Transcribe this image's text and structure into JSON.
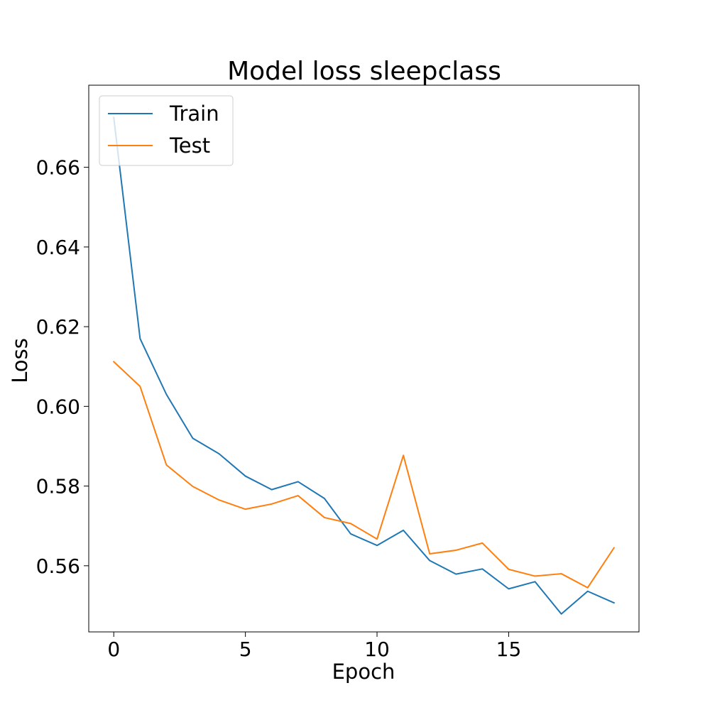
{
  "chart_data": {
    "type": "line",
    "title": "Model loss sleepclass",
    "xlabel": "Epoch",
    "ylabel": "Loss",
    "x": [
      0,
      1,
      2,
      3,
      4,
      5,
      6,
      7,
      8,
      9,
      10,
      11,
      12,
      13,
      14,
      15,
      16,
      17,
      18,
      19
    ],
    "xlim": [
      -0.95,
      19.95
    ],
    "ylim": [
      0.5434,
      0.6806
    ],
    "xticks": [
      0,
      5,
      10,
      15
    ],
    "yticks": [
      0.56,
      0.58,
      0.6,
      0.62,
      0.64,
      0.66
    ],
    "ytick_labels": [
      "0.56",
      "0.58",
      "0.60",
      "0.62",
      "0.64",
      "0.66"
    ],
    "xtick_labels": [
      "0",
      "5",
      "10",
      "15"
    ],
    "grid": false,
    "legend_position": "top-left",
    "series": [
      {
        "name": "Train",
        "color": "#1f77b4",
        "values": [
          0.6725,
          0.617,
          0.603,
          0.592,
          0.5881,
          0.5825,
          0.5791,
          0.5811,
          0.5769,
          0.568,
          0.5651,
          0.5689,
          0.5613,
          0.5579,
          0.5592,
          0.5542,
          0.556,
          0.5479,
          0.5536,
          0.5507
        ]
      },
      {
        "name": "Test",
        "color": "#ff7f0e",
        "values": [
          0.6112,
          0.605,
          0.5853,
          0.5799,
          0.5765,
          0.5742,
          0.5755,
          0.5776,
          0.5721,
          0.5706,
          0.5667,
          0.5877,
          0.563,
          0.5639,
          0.5657,
          0.5591,
          0.5574,
          0.558,
          0.5545,
          0.5645
        ]
      }
    ]
  }
}
